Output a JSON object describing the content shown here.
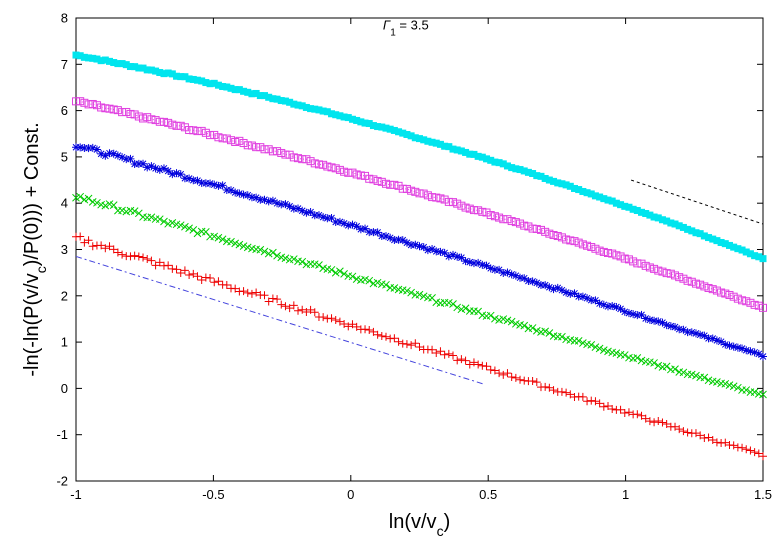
{
  "chart_data": {
    "type": "scatter",
    "xlabel_main": "ln(v/v",
    "xlabel_sub": "c",
    "xlabel_end": ")",
    "ylabel_main": "-ln(-ln(P(v/v",
    "ylabel_sub": "c",
    "ylabel_end": ")/P(0))) + Const.",
    "annotation": {
      "greek": "Γ",
      "sub": "1",
      "rest": " = 3.5",
      "x": 0.2,
      "y": 7.75
    },
    "xlim": [
      -1,
      1.5
    ],
    "ylim": [
      -2,
      8
    ],
    "xticks": [
      -1,
      -0.5,
      0,
      0.5,
      1,
      1.5
    ],
    "xtick_labels": [
      "-1",
      "-0.5",
      "0",
      "0.5",
      "1",
      "1.5"
    ],
    "yticks": [
      -2,
      -1,
      0,
      1,
      2,
      3,
      4,
      5,
      6,
      7,
      8
    ],
    "ytick_labels": [
      "-2",
      "-1",
      "0",
      "1",
      "2",
      "3",
      "4",
      "5",
      "6",
      "7",
      "8"
    ],
    "grid": false,
    "series": [
      {
        "color": "#00e5ee",
        "marker": "filled-square",
        "start": 7.2,
        "end": 2.8,
        "bow": 0.4,
        "noise": 0.02,
        "points": 165
      },
      {
        "color": "#e040e0",
        "marker": "open-square",
        "start": 6.2,
        "end": 1.75,
        "bow": 0.25,
        "noise": 0.03,
        "points": 165,
        "dotted_line": true
      },
      {
        "color": "#0000dd",
        "marker": "star",
        "start": 5.25,
        "end": 0.7,
        "bow": 0.1,
        "noise": 0.05,
        "points": 165
      },
      {
        "color": "#00cc00",
        "marker": "x",
        "start": 4.15,
        "end": -0.15,
        "bow": 0.0,
        "noise": 0.05,
        "points": 165
      },
      {
        "color": "#ee0000",
        "marker": "plus",
        "start": 3.25,
        "end": -1.45,
        "bow": 0.0,
        "noise": 0.07,
        "points": 165
      }
    ],
    "reference_lines": [
      {
        "color": "#4444dd",
        "dash": "6 3 2 3",
        "x": [
          -1.0,
          0.48
        ],
        "y": [
          2.85,
          0.1
        ]
      },
      {
        "color": "#000000",
        "dash": "3 3",
        "x": [
          1.02,
          1.5
        ],
        "y": [
          4.5,
          3.55
        ]
      }
    ]
  }
}
